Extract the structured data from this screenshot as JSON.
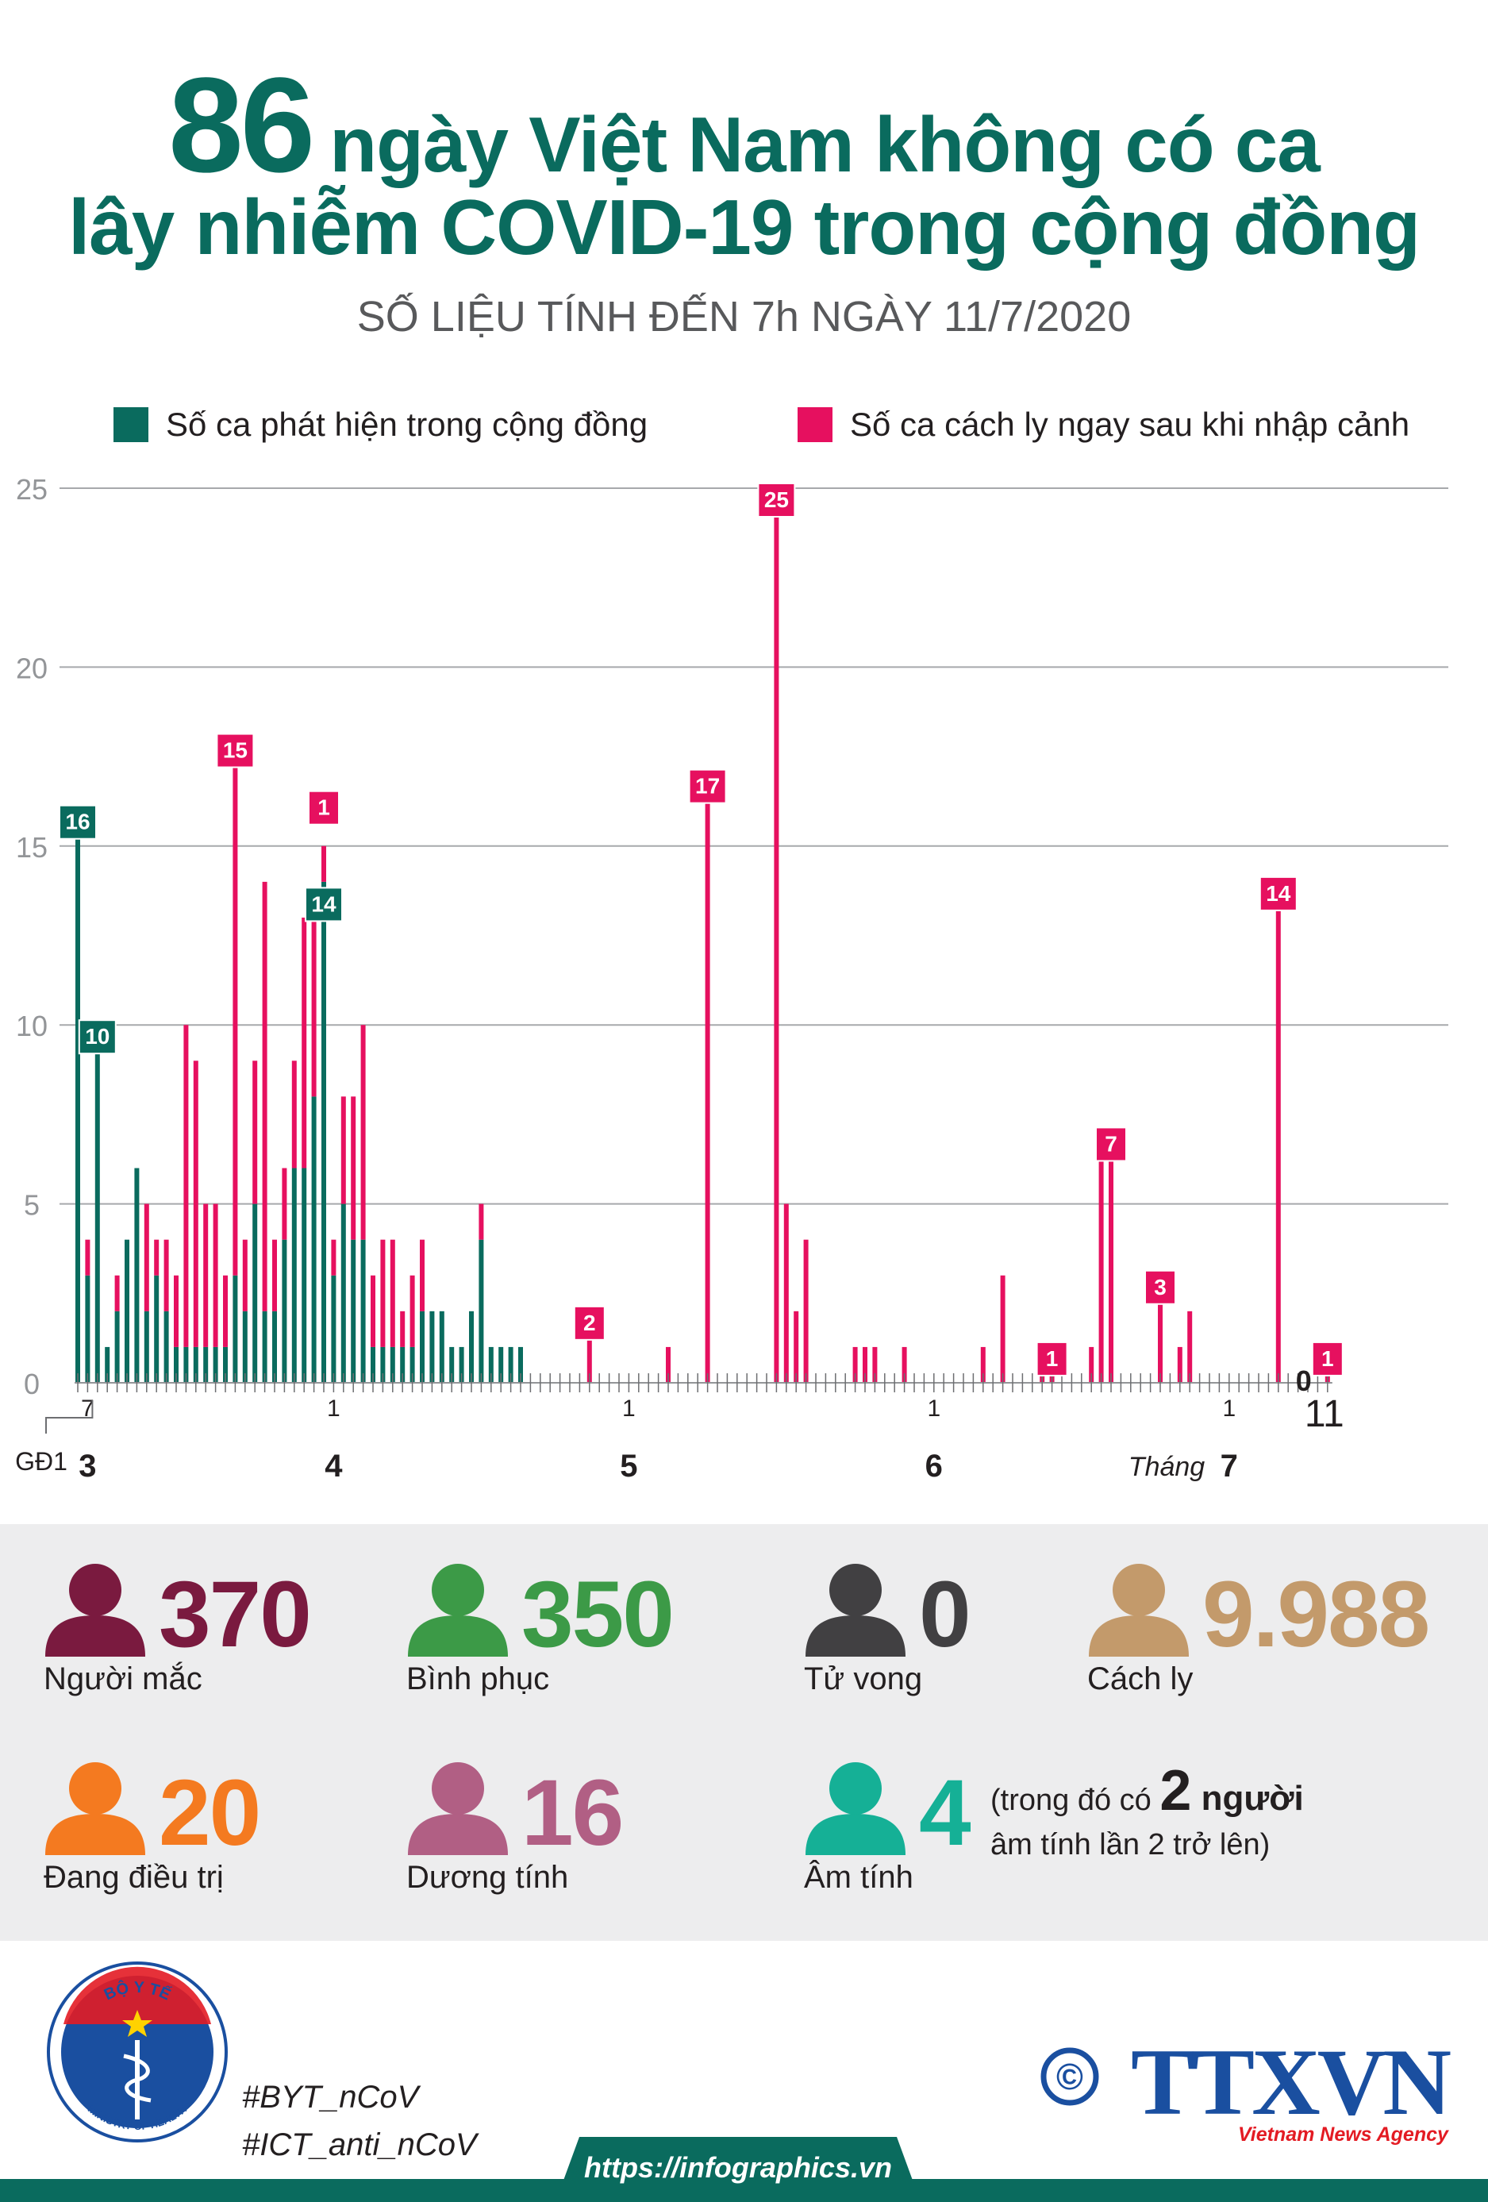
{
  "header": {
    "title_number": "86",
    "title_line1_rest": "ngày Việt Nam không có ca",
    "title_line2": "lây nhiễm COVID-19 trong cộng đồng",
    "subtitle": "SỐ LIỆU TÍNH ĐẾN 7h NGÀY 11/7/2020"
  },
  "colors": {
    "community": "#0a6b5e",
    "quarantine": "#e6105f",
    "infected": "#7a1a3f",
    "recovered": "#3c9a47",
    "deaths": "#414042",
    "isolation": "#c39a6b",
    "treating": "#f47a20",
    "positive": "#b15f84",
    "negative": "#15b096"
  },
  "chart_data": {
    "type": "bar",
    "stacked": true,
    "legend": [
      "Số ca phát hiện trong cộng đồng",
      "Số ca cách ly ngay sau khi nhập cảnh"
    ],
    "legend_position": "top",
    "ylim": [
      0,
      25
    ],
    "yticks": [
      "25",
      "20",
      "15",
      "10",
      "5",
      "0"
    ],
    "grid": true,
    "x_start_date": "2020-03-06",
    "x_end_date": "2020-07-11",
    "x_ticks": [
      {
        "date": "2020-03-07",
        "label": "7"
      },
      {
        "date": "2020-04-01",
        "label": "1"
      },
      {
        "date": "2020-05-01",
        "label": "1"
      },
      {
        "date": "2020-06-01",
        "label": "1"
      },
      {
        "date": "2020-07-01",
        "label": "1"
      },
      {
        "date": "2020-07-11",
        "label": "11"
      }
    ],
    "month_labels": [
      {
        "date": "2020-03-07",
        "label": "3"
      },
      {
        "date": "2020-04-01",
        "label": "4"
      },
      {
        "date": "2020-05-01",
        "label": "5"
      },
      {
        "date": "2020-06-01",
        "label": "6"
      },
      {
        "date": "2020-07-01",
        "label": "7"
      }
    ],
    "phase_label": "GĐ1",
    "month_caption": "Tháng",
    "series": [
      {
        "name": "Số ca phát hiện trong cộng đồng",
        "values": [
          {
            "date": "2020-03-06",
            "value": 16
          },
          {
            "date": "2020-03-07",
            "value": 3
          },
          {
            "date": "2020-03-08",
            "value": 10
          },
          {
            "date": "2020-03-09",
            "value": 1
          },
          {
            "date": "2020-03-10",
            "value": 2
          },
          {
            "date": "2020-03-11",
            "value": 4
          },
          {
            "date": "2020-03-12",
            "value": 6
          },
          {
            "date": "2020-03-13",
            "value": 2
          },
          {
            "date": "2020-03-14",
            "value": 3
          },
          {
            "date": "2020-03-15",
            "value": 2
          },
          {
            "date": "2020-03-16",
            "value": 1
          },
          {
            "date": "2020-03-17",
            "value": 1
          },
          {
            "date": "2020-03-18",
            "value": 1
          },
          {
            "date": "2020-03-19",
            "value": 1
          },
          {
            "date": "2020-03-20",
            "value": 1
          },
          {
            "date": "2020-03-21",
            "value": 1
          },
          {
            "date": "2020-03-22",
            "value": 3
          },
          {
            "date": "2020-03-23",
            "value": 2
          },
          {
            "date": "2020-03-24",
            "value": 5
          },
          {
            "date": "2020-03-25",
            "value": 2
          },
          {
            "date": "2020-03-26",
            "value": 2
          },
          {
            "date": "2020-03-27",
            "value": 4
          },
          {
            "date": "2020-03-28",
            "value": 6
          },
          {
            "date": "2020-03-29",
            "value": 6
          },
          {
            "date": "2020-03-30",
            "value": 8
          },
          {
            "date": "2020-03-31",
            "value": 14
          },
          {
            "date": "2020-04-01",
            "value": 3
          },
          {
            "date": "2020-04-02",
            "value": 5
          },
          {
            "date": "2020-04-03",
            "value": 4
          },
          {
            "date": "2020-04-04",
            "value": 4
          },
          {
            "date": "2020-04-05",
            "value": 1
          },
          {
            "date": "2020-04-06",
            "value": 1
          },
          {
            "date": "2020-04-07",
            "value": 1
          },
          {
            "date": "2020-04-08",
            "value": 1
          },
          {
            "date": "2020-04-09",
            "value": 1
          },
          {
            "date": "2020-04-10",
            "value": 2
          },
          {
            "date": "2020-04-11",
            "value": 2
          },
          {
            "date": "2020-04-12",
            "value": 2
          },
          {
            "date": "2020-04-13",
            "value": 1
          },
          {
            "date": "2020-04-14",
            "value": 1
          },
          {
            "date": "2020-04-15",
            "value": 2
          },
          {
            "date": "2020-04-16",
            "value": 4
          },
          {
            "date": "2020-04-17",
            "value": 1
          },
          {
            "date": "2020-04-18",
            "value": 1
          },
          {
            "date": "2020-04-19",
            "value": 1
          },
          {
            "date": "2020-04-20",
            "value": 1
          }
        ]
      },
      {
        "name": "Số ca cách ly ngay sau khi nhập cảnh",
        "values": [
          {
            "date": "2020-03-07",
            "value": 1
          },
          {
            "date": "2020-03-10",
            "value": 1
          },
          {
            "date": "2020-03-13",
            "value": 3
          },
          {
            "date": "2020-03-14",
            "value": 1
          },
          {
            "date": "2020-03-15",
            "value": 2
          },
          {
            "date": "2020-03-16",
            "value": 2
          },
          {
            "date": "2020-03-17",
            "value": 9
          },
          {
            "date": "2020-03-18",
            "value": 8
          },
          {
            "date": "2020-03-19",
            "value": 4
          },
          {
            "date": "2020-03-20",
            "value": 4
          },
          {
            "date": "2020-03-21",
            "value": 2
          },
          {
            "date": "2020-03-22",
            "value": 15
          },
          {
            "date": "2020-03-23",
            "value": 2
          },
          {
            "date": "2020-03-24",
            "value": 4
          },
          {
            "date": "2020-03-25",
            "value": 12
          },
          {
            "date": "2020-03-26",
            "value": 2
          },
          {
            "date": "2020-03-27",
            "value": 2
          },
          {
            "date": "2020-03-28",
            "value": 3
          },
          {
            "date": "2020-03-29",
            "value": 7
          },
          {
            "date": "2020-03-30",
            "value": 5
          },
          {
            "date": "2020-03-31",
            "value": 1
          },
          {
            "date": "2020-04-01",
            "value": 1
          },
          {
            "date": "2020-04-02",
            "value": 3
          },
          {
            "date": "2020-04-03",
            "value": 4
          },
          {
            "date": "2020-04-04",
            "value": 6
          },
          {
            "date": "2020-04-05",
            "value": 2
          },
          {
            "date": "2020-04-06",
            "value": 3
          },
          {
            "date": "2020-04-07",
            "value": 3
          },
          {
            "date": "2020-04-08",
            "value": 1
          },
          {
            "date": "2020-04-09",
            "value": 2
          },
          {
            "date": "2020-04-10",
            "value": 2
          },
          {
            "date": "2020-04-16",
            "value": 1
          },
          {
            "date": "2020-04-27",
            "value": 2
          },
          {
            "date": "2020-05-05",
            "value": 1
          },
          {
            "date": "2020-05-09",
            "value": 17
          },
          {
            "date": "2020-05-16",
            "value": 25
          },
          {
            "date": "2020-05-17",
            "value": 5
          },
          {
            "date": "2020-05-18",
            "value": 2
          },
          {
            "date": "2020-05-19",
            "value": 4
          },
          {
            "date": "2020-05-24",
            "value": 1
          },
          {
            "date": "2020-05-25",
            "value": 1
          },
          {
            "date": "2020-05-26",
            "value": 1
          },
          {
            "date": "2020-05-29",
            "value": 1
          },
          {
            "date": "2020-06-06",
            "value": 1
          },
          {
            "date": "2020-06-08",
            "value": 3
          },
          {
            "date": "2020-06-12",
            "value": 1
          },
          {
            "date": "2020-06-13",
            "value": 1
          },
          {
            "date": "2020-06-17",
            "value": 1
          },
          {
            "date": "2020-06-18",
            "value": 7
          },
          {
            "date": "2020-06-19",
            "value": 7
          },
          {
            "date": "2020-06-24",
            "value": 3
          },
          {
            "date": "2020-06-26",
            "value": 1
          },
          {
            "date": "2020-06-27",
            "value": 2
          },
          {
            "date": "2020-07-06",
            "value": 14
          },
          {
            "date": "2020-07-11",
            "value": 1
          }
        ]
      }
    ],
    "annotations": [
      {
        "date": "2020-03-06",
        "label": "16",
        "series": "community"
      },
      {
        "date": "2020-03-08",
        "label": "10",
        "series": "community"
      },
      {
        "date": "2020-03-22",
        "label": "15",
        "series": "quarantine"
      },
      {
        "date": "2020-03-31",
        "label": "1",
        "series": "quarantine",
        "level": 16.4
      },
      {
        "date": "2020-03-31",
        "label": "14",
        "series": "community",
        "level": 13.7
      },
      {
        "date": "2020-04-27",
        "label": "2",
        "series": "quarantine"
      },
      {
        "date": "2020-05-09",
        "label": "17",
        "series": "quarantine"
      },
      {
        "date": "2020-05-16",
        "label": "25",
        "series": "quarantine"
      },
      {
        "date": "2020-06-13",
        "label": "1",
        "series": "quarantine"
      },
      {
        "date": "2020-06-19",
        "label": "7",
        "series": "quarantine"
      },
      {
        "date": "2020-06-24",
        "label": "3",
        "series": "quarantine"
      },
      {
        "date": "2020-07-06",
        "label": "14",
        "series": "quarantine"
      },
      {
        "date": "2020-07-11",
        "label": "1",
        "series": "quarantine"
      }
    ],
    "end_zero_label": "0"
  },
  "stats": [
    {
      "value": "370",
      "label": "Người mắc",
      "color": "#7a1a3f"
    },
    {
      "value": "350",
      "label": "Bình phục",
      "color": "#3c9a47"
    },
    {
      "value": "0",
      "label": "Tử vong",
      "color": "#414042"
    },
    {
      "value": "9.988",
      "label": "Cách ly",
      "color": "#c39a6b"
    },
    {
      "value": "20",
      "label": "Đang điều trị",
      "color": "#f47a20"
    },
    {
      "value": "16",
      "label": "Dương tính",
      "color": "#b15f84"
    },
    {
      "value": "4",
      "label": "Âm tính",
      "color": "#15b096"
    }
  ],
  "negative_note": {
    "prefix": "(trong đó có ",
    "number": "2",
    "unit": " người",
    "line2": "âm tính lần 2 trở lên)"
  },
  "footer": {
    "moh_text_top": "BỘ Y TẾ",
    "moh_text_bottom": "MINISTRY OF HEALTH",
    "hashtag1": "#BYT_nCoV",
    "hashtag2": "#ICT_anti_nCoV",
    "copyright_symbol": "©",
    "agency_logo": "TTXVN",
    "agency_name": "Vietnam News Agency",
    "url": "https://infographics.vn"
  }
}
